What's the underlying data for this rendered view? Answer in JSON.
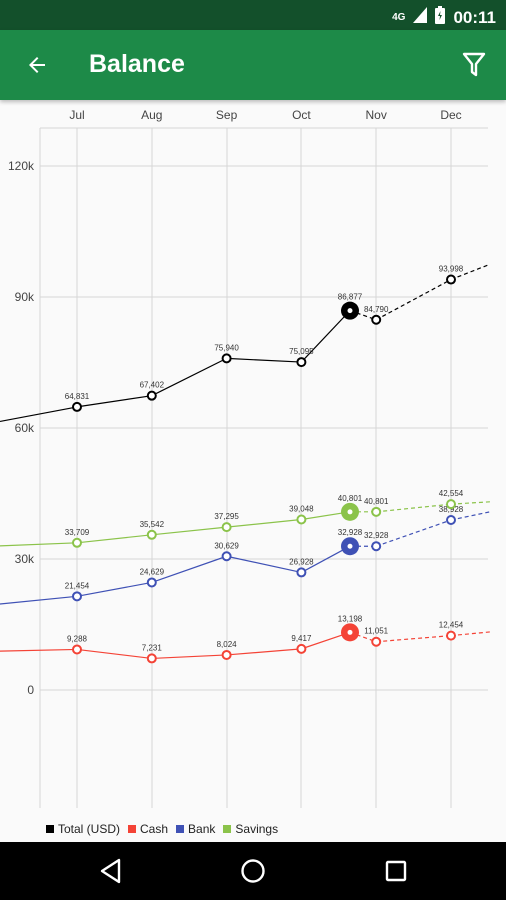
{
  "status": {
    "network": "4G",
    "time": "00:11"
  },
  "appbar": {
    "title": "Balance"
  },
  "icons": {
    "back": "arrow-left-icon",
    "filter": "filter-icon",
    "nav_back": "triangle-back-icon",
    "nav_home": "circle-home-icon",
    "nav_recents": "square-recents-icon"
  },
  "chart_data": {
    "type": "line",
    "categories": [
      "Jul",
      "Aug",
      "Sep",
      "Oct",
      "Nov",
      "Dec"
    ],
    "ylim": [
      -25000,
      125000
    ],
    "y_ticks": [
      "0",
      "30k",
      "60k",
      "90k",
      "120k"
    ],
    "y_tick_values": [
      0,
      30000,
      60000,
      90000,
      120000
    ],
    "grid": true,
    "legend_position": "bottom-left",
    "current_month": "Oct-Nov",
    "series": [
      {
        "name": "Total (USD)",
        "color": "#000000",
        "values": [
          64831,
          67402,
          75940,
          75095,
          84790,
          93998
        ],
        "labels": [
          "64,831",
          "67,402",
          "75,940",
          "75,095",
          "84,790",
          "93,998"
        ],
        "current_value": 86877,
        "current_label": "86,877",
        "lead_in": 61500,
        "lead_out": 97500
      },
      {
        "name": "Cash",
        "color": "#f44336",
        "values": [
          9288,
          7231,
          8024,
          9417,
          11051,
          12454
        ],
        "labels": [
          "9,288",
          "7,231",
          "8,024",
          "9,417",
          "11,051",
          "12,454"
        ],
        "current_value": 13198,
        "current_label": "13,198",
        "lead_in": 8900,
        "lead_out": 13300
      },
      {
        "name": "Bank",
        "color": "#3f51b5",
        "values": [
          21454,
          24629,
          30629,
          26928,
          32928,
          38928
        ],
        "labels": [
          "21,454",
          "24,629",
          "30,629",
          "26,928",
          "32,928",
          "38,928"
        ],
        "current_value": 32928,
        "current_label": "32,928",
        "lead_in": 19700,
        "lead_out": 40800
      },
      {
        "name": "Savings",
        "color": "#8bc34a",
        "values": [
          33709,
          35542,
          37295,
          39048,
          40801,
          42554
        ],
        "labels": [
          "33,709",
          "35,542",
          "37,295",
          "39,048",
          "40,801",
          "42,554"
        ],
        "current_value": 40801,
        "current_label": "40,801",
        "lead_in": 33000,
        "lead_out": 43100
      }
    ]
  }
}
